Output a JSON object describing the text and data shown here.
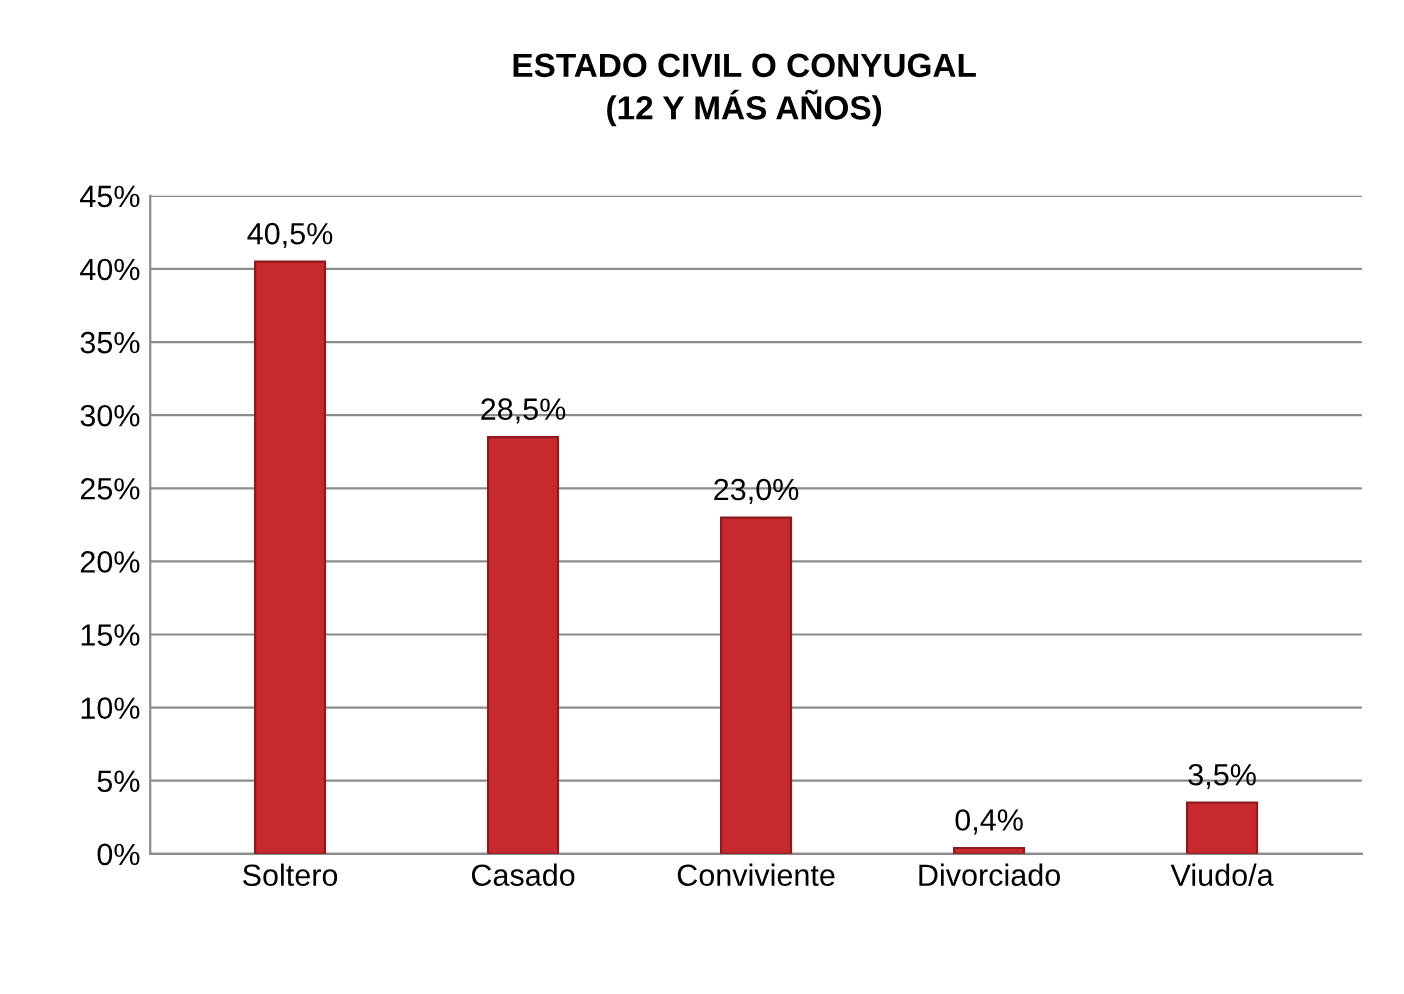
{
  "chart_data": {
    "type": "bar",
    "title": "ESTADO CIVIL O CONYUGAL\n(12 Y MÁS AÑOS)",
    "categories": [
      "Soltero",
      "Casado",
      "Conviviente",
      "Divorciado",
      "Viudo/a"
    ],
    "values": [
      40.5,
      28.5,
      23.0,
      0.4,
      3.5
    ],
    "value_labels": [
      "40,5%",
      "28,5%",
      "23,0%",
      "0,4%",
      "3,5%"
    ],
    "color": "#c62a2f",
    "ylim": [
      0,
      45
    ],
    "yticks": [
      {
        "value": 0,
        "label": "0%"
      },
      {
        "value": 5,
        "label": "5%"
      },
      {
        "value": 10,
        "label": "10%"
      },
      {
        "value": 15,
        "label": "15%"
      },
      {
        "value": 20,
        "label": "20%"
      },
      {
        "value": 25,
        "label": "25%"
      },
      {
        "value": 30,
        "label": "30%"
      },
      {
        "value": 35,
        "label": "35%"
      },
      {
        "value": 40,
        "label": "40%"
      },
      {
        "value": 45,
        "label": "45%"
      }
    ],
    "grid": "y"
  }
}
